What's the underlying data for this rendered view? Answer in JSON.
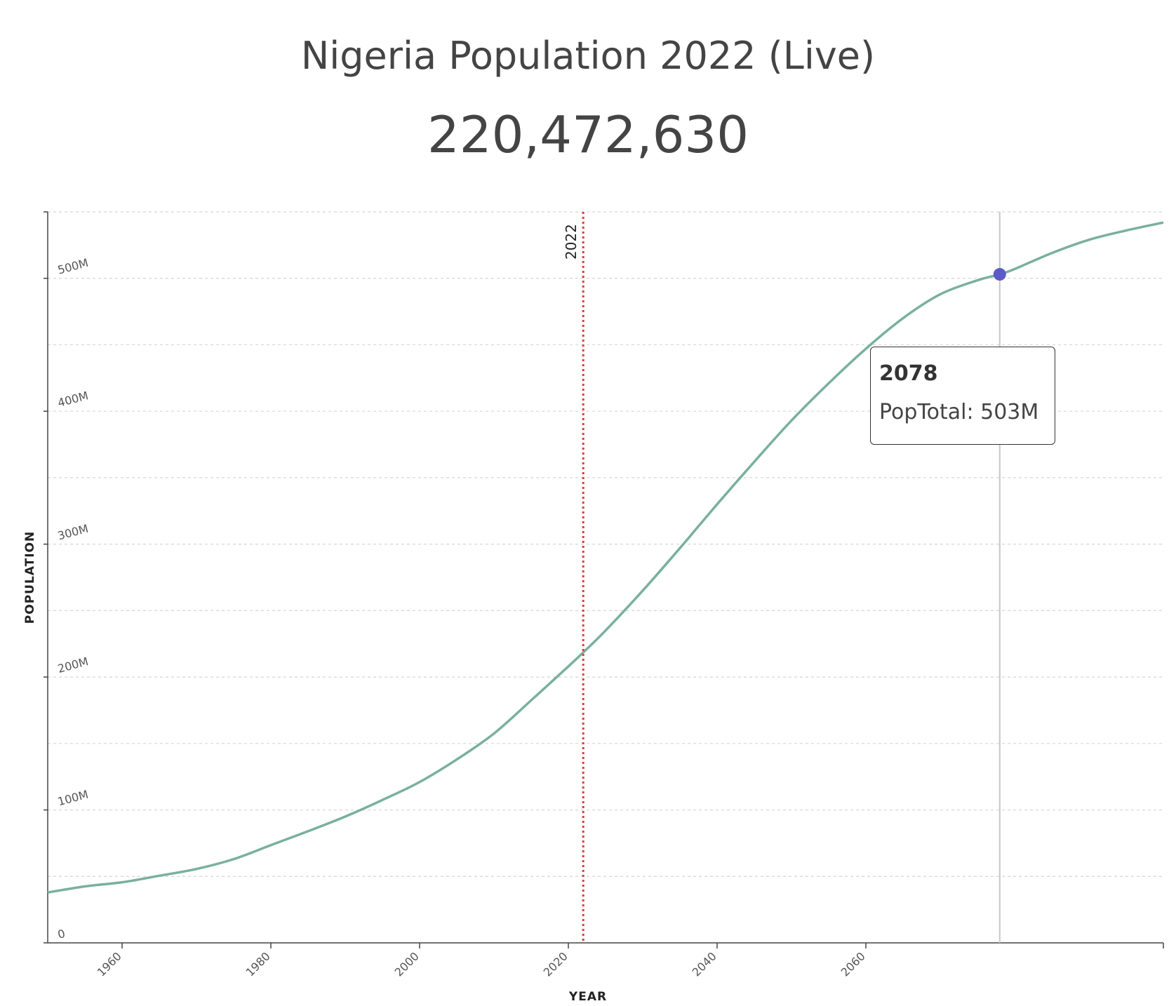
{
  "header": {
    "title": "Nigeria Population 2022 (Live)",
    "counter": "220,472,630"
  },
  "colors": {
    "line": "#79b09e",
    "marker_line": "#e53935",
    "hover_point": "#5b5bc8",
    "grid": "#d5d5d5",
    "axis": "#444444",
    "text": "#444444"
  },
  "chart_data": {
    "type": "line",
    "xlabel": "YEAR",
    "ylabel": "POPULATION",
    "xlim": [
      1950,
      2100
    ],
    "ylim": [
      0,
      550000000
    ],
    "x_ticks": [
      1960,
      1980,
      2000,
      2020,
      2040,
      2060
    ],
    "y_ticks": [
      {
        "value": 0,
        "label": "0"
      },
      {
        "value": 100000000,
        "label": "100M"
      },
      {
        "value": 200000000,
        "label": "200M"
      },
      {
        "value": 300000000,
        "label": "300M"
      },
      {
        "value": 400000000,
        "label": "400M"
      },
      {
        "value": 500000000,
        "label": "500M"
      }
    ],
    "grid": true,
    "series": [
      {
        "name": "PopTotal",
        "x": [
          1950,
          1955,
          1960,
          1965,
          1970,
          1975,
          1980,
          1985,
          1990,
          1995,
          2000,
          2005,
          2010,
          2015,
          2020,
          2022,
          2025,
          2030,
          2035,
          2040,
          2045,
          2050,
          2055,
          2060,
          2065,
          2070,
          2075,
          2078,
          2080,
          2085,
          2090,
          2095,
          2100
        ],
        "y": [
          37900000,
          42500000,
          45600000,
          50500000,
          55600000,
          63000000,
          73500000,
          84000000,
          95000000,
          107500000,
          121000000,
          138000000,
          157500000,
          182500000,
          208000000,
          218500000,
          235000000,
          265000000,
          297000000,
          330000000,
          362000000,
          393000000,
          421000000,
          447000000,
          470000000,
          488000000,
          498500000,
          503000000,
          507000000,
          519000000,
          529000000,
          536000000,
          542000000
        ]
      }
    ],
    "reference_line": {
      "x": 2022,
      "label": "2022"
    },
    "hover": {
      "x": 2078,
      "y": 503000000,
      "year_label": "2078",
      "label": "PopTotal: 503M"
    }
  }
}
